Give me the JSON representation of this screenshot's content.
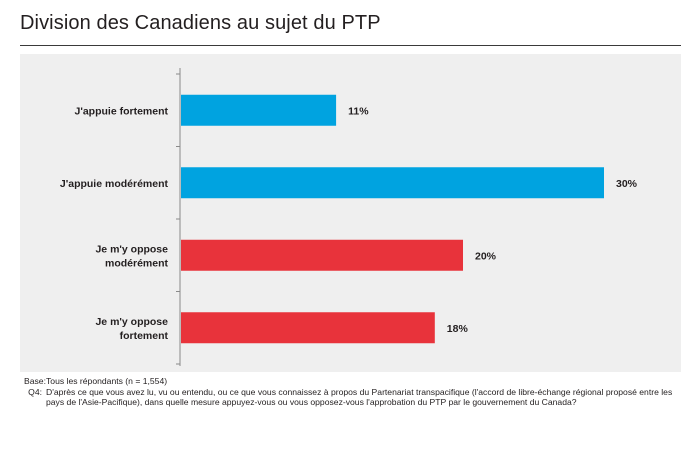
{
  "title": "Division des Canadiens au sujet du PTP",
  "chart_data": {
    "type": "bar",
    "orientation": "horizontal",
    "categories": [
      [
        "J'appuie fortement"
      ],
      [
        "J'appuie modérément"
      ],
      [
        "Je m'y oppose",
        "modérément"
      ],
      [
        "Je m'y oppose",
        "fortement"
      ]
    ],
    "values": [
      11,
      30,
      20,
      18
    ],
    "value_labels": [
      "11%",
      "30%",
      "20%",
      "18%"
    ],
    "bar_colors": [
      "#00a3e0",
      "#00a3e0",
      "#e8333b",
      "#e8333b"
    ],
    "xlim": [
      0,
      36
    ],
    "grid": false,
    "legend": "none"
  },
  "notes": [
    {
      "key": "Base:",
      "text": "Tous les répondants (n = 1,554)"
    },
    {
      "key": "Q4:",
      "text": "D'après ce que vous avez lu, vu ou entendu, ou ce que vous connaissez à propos du Partenariat transpacifique (l'accord de libre-échange régional proposé entre les pays de l'Asie-Pacifique), dans quelle mesure appuyez-vous ou vous opposez-vous l'approbation du PTP par le gouvernement du Canada?"
    }
  ]
}
